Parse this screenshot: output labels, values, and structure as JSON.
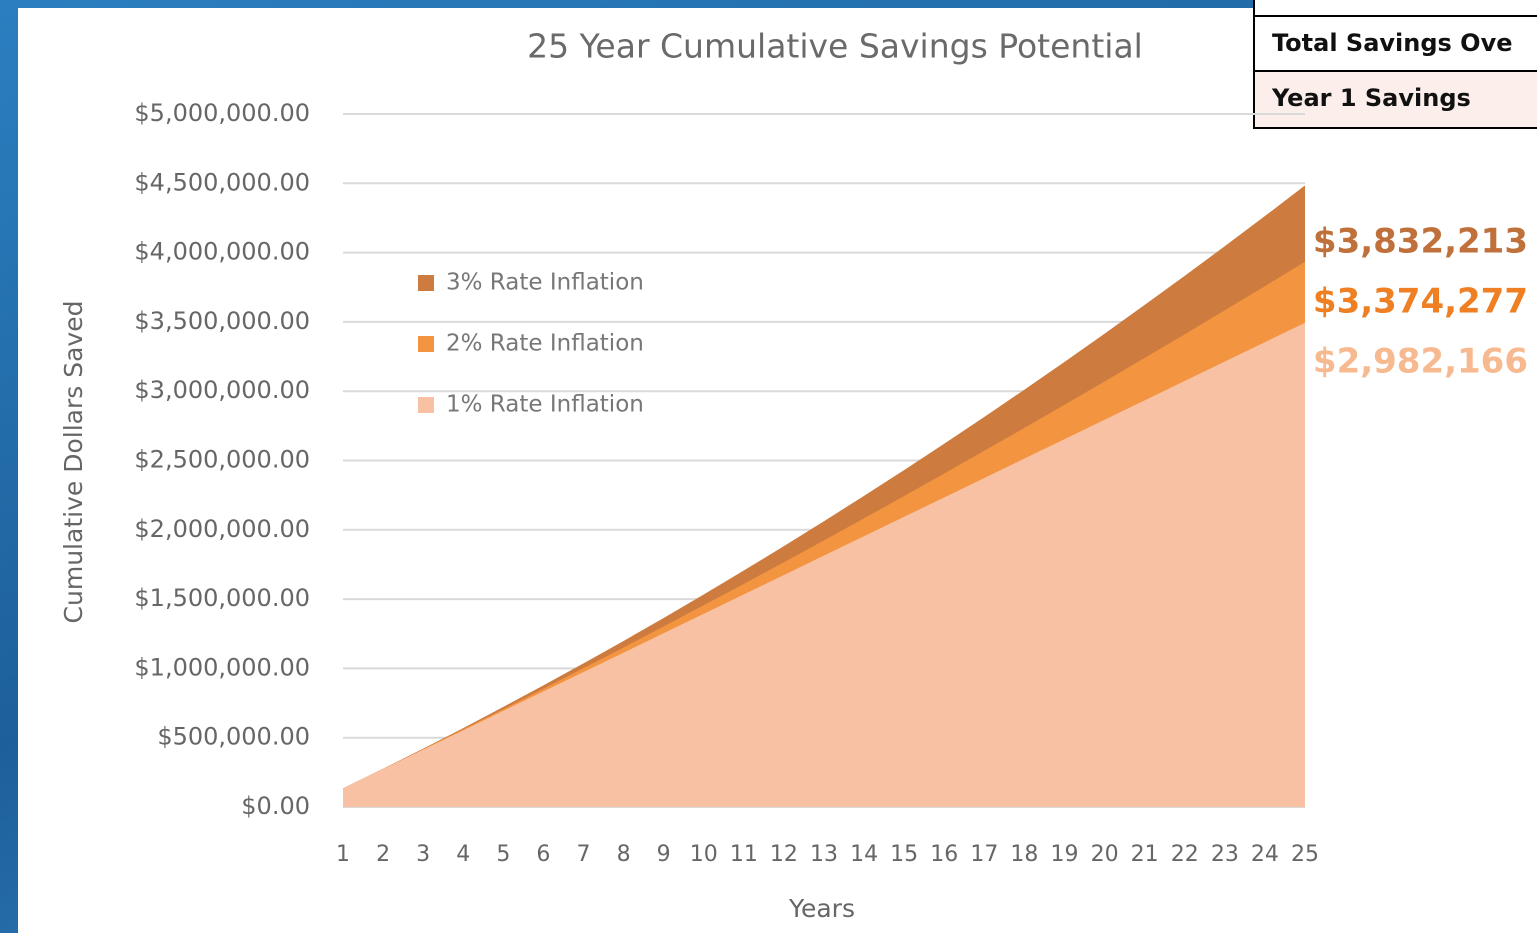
{
  "chart_data": {
    "type": "area",
    "title": "25 Year Cumulative Savings Potential",
    "x_label": "Years",
    "y_label": "Cumulative Dollars Saved",
    "categories": [
      "1",
      "2",
      "3",
      "4",
      "5",
      "6",
      "7",
      "8",
      "9",
      "10",
      "11",
      "12",
      "13",
      "14",
      "15",
      "16",
      "17",
      "18",
      "19",
      "20",
      "21",
      "22",
      "23",
      "24",
      "25"
    ],
    "series": [
      {
        "name": "3% Rate Inflation",
        "color": "#cd7b3e",
        "values": [
          130000,
          272000,
          417000,
          565000,
          718000,
          873000,
          1032000,
          1194000,
          1360000,
          1529000,
          1702000,
          1878000,
          2058000,
          2241000,
          2427000,
          2617000,
          2810000,
          3007000,
          3207000,
          3411000,
          3618000,
          3828000,
          4042000,
          4259000,
          4480000
        ]
      },
      {
        "name": "2% Rate Inflation",
        "color": "#f29440",
        "values": [
          130000,
          271000,
          413000,
          557000,
          702000,
          849000,
          998000,
          1147000,
          1299000,
          1452000,
          1606000,
          1762000,
          1920000,
          2079000,
          2240000,
          2402000,
          2566000,
          2731000,
          2898000,
          3066000,
          3236000,
          3407000,
          3580000,
          3754000,
          3930000
        ]
      },
      {
        "name": "1% Rate Inflation",
        "color": "#f8c1a4",
        "values": [
          130000,
          270000,
          410000,
          550000,
          690000,
          830000,
          970000,
          1110000,
          1250000,
          1390000,
          1530000,
          1670000,
          1810000,
          1950000,
          2090000,
          2230000,
          2370000,
          2510000,
          2650000,
          2790000,
          2930000,
          3070000,
          3210000,
          3350000,
          3490000
        ]
      }
    ],
    "ylim": [
      0,
      5000000
    ],
    "yticks": [
      {
        "value": 0,
        "label": "$0.00"
      },
      {
        "value": 500000,
        "label": "$500,000.00"
      },
      {
        "value": 1000000,
        "label": "$1,000,000.00"
      },
      {
        "value": 1500000,
        "label": "$1,500,000.00"
      },
      {
        "value": 2000000,
        "label": "$2,000,000.00"
      },
      {
        "value": 2500000,
        "label": "$2,500,000.00"
      },
      {
        "value": 3000000,
        "label": "$3,000,000.00"
      },
      {
        "value": 3500000,
        "label": "$3,500,000.00"
      },
      {
        "value": 4000000,
        "label": "$4,000,000.00"
      },
      {
        "value": 4500000,
        "label": "$4,500,000.00"
      },
      {
        "value": 5000000,
        "label": "$5,000,000.00"
      }
    ],
    "grid": true,
    "legend": "left",
    "annotations": [
      {
        "text": "$3,832,213",
        "color": "#c0703a"
      },
      {
        "text": "$3,374,277",
        "color": "#ee7f22"
      },
      {
        "text": "$2,982,166",
        "color": "#f7b98f"
      }
    ]
  },
  "table": {
    "rows": [
      [
        "Total Savings Ove"
      ],
      [
        "Year 1 Savings"
      ]
    ]
  }
}
